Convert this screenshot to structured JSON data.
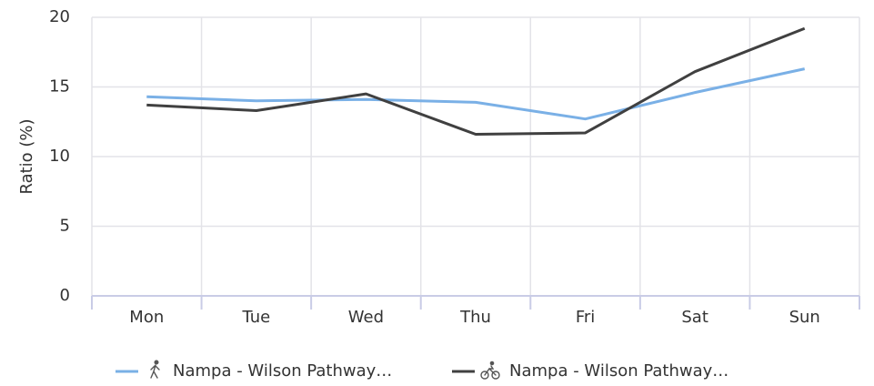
{
  "chart_data": {
    "type": "line",
    "y_label": "Ratio (%)",
    "categories": [
      "Mon",
      "Tue",
      "Wed",
      "Thu",
      "Fri",
      "Sat",
      "Sun"
    ],
    "series": [
      {
        "name": "Nampa - Wilson Pathway…",
        "color": "#7ab0e6",
        "values": [
          14.3,
          14.0,
          14.1,
          13.9,
          12.7,
          14.6,
          16.3
        ]
      },
      {
        "name": "Nampa - Wilson Pathway…",
        "color": "#404040",
        "values": [
          13.7,
          13.3,
          14.5,
          11.6,
          11.7,
          16.1,
          19.2
        ]
      }
    ],
    "ylim": [
      0,
      20
    ],
    "yticks": [
      0,
      5,
      10,
      15,
      20
    ],
    "grid": true
  }
}
